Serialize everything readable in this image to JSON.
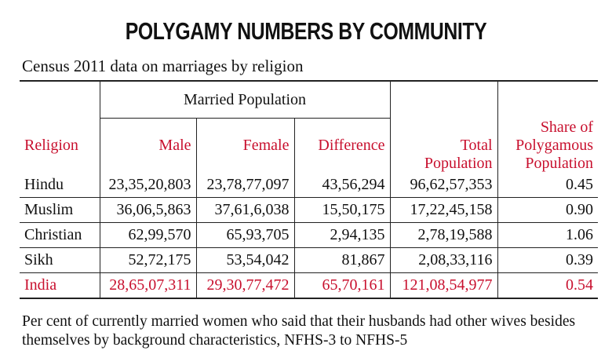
{
  "header": {
    "title": "POLYGAMY NUMBERS BY COMMUNITY",
    "subtitle": "Census 2011 data on marriages by religion"
  },
  "table": {
    "group_header": "Married Population",
    "columns": [
      "Religion",
      "Male",
      "Female",
      "Difference",
      "Total Population",
      "Share of Polygamous Population"
    ],
    "rows": [
      [
        "Hindu",
        "23,35,20,803",
        "23,78,77,097",
        "43,56,294",
        "96,62,57,353",
        "0.45"
      ],
      [
        "Muslim",
        "36,06,5,863",
        "37,61,6,038",
        "15,50,175",
        "17,22,45,158",
        "0.90"
      ],
      [
        "Christian",
        "62,99,570",
        "65,93,705",
        "2,94,135",
        "2,78,19,588",
        "1.06"
      ],
      [
        "Sikh",
        "52,72,175",
        "53,54,042",
        "81,867",
        "2,08,33,116",
        "0.39"
      ],
      [
        "India",
        "28,65,07,311",
        "29,30,77,472",
        "65,70,161",
        "121,08,54,977",
        "0.54"
      ]
    ]
  },
  "footer": {
    "note": "Per cent of currently married women who said that their husbands had other wives besides themselves by background characteristics, NFHS-3 to NFHS-5"
  }
}
